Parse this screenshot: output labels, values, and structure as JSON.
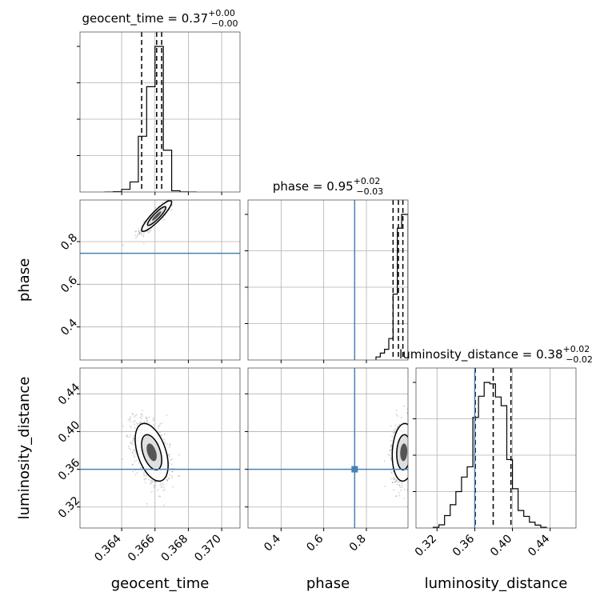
{
  "chart_data": {
    "type": "corner",
    "parameters": [
      "geocent_time",
      "phase",
      "luminosity_distance"
    ],
    "axis_labels": [
      "geocent_time",
      "phase",
      "luminosity_distance"
    ],
    "ranges": [
      [
        0.3615,
        0.3711
      ],
      [
        0.245,
        0.995
      ],
      [
        0.2977,
        0.4674
      ]
    ],
    "ticks": [
      {
        "values": [
          0.364,
          0.366,
          0.368,
          0.37
        ],
        "labels": [
          "0.364",
          "0.366",
          "0.368",
          "0.370"
        ]
      },
      {
        "values": [
          0.4,
          0.6,
          0.8
        ],
        "labels": [
          "0.4",
          "0.6",
          "0.8"
        ]
      },
      {
        "values": [
          0.32,
          0.36,
          0.4,
          0.44
        ],
        "labels": [
          "0.32",
          "0.36",
          "0.40",
          "0.44"
        ]
      }
    ],
    "titles": [
      {
        "prefix": "geocent_time = 0.37",
        "sup": "+0.00",
        "sub": "−0.00"
      },
      {
        "prefix": "phase = 0.95",
        "sup": "+0.02",
        "sub": "−0.03"
      },
      {
        "prefix": "luminosity_distance = 0.38",
        "sup": "+0.02",
        "sub": "−0.02"
      }
    ],
    "quantiles": [
      [
        0.3652,
        0.3661,
        0.3664
      ],
      [
        0.925,
        0.95,
        0.971
      ],
      [
        0.3606,
        0.3796,
        0.3984
      ]
    ],
    "truths": [
      null,
      0.745,
      0.36
    ],
    "histograms": [
      {
        "bins": [
          0.363,
          0.3635,
          0.364,
          0.3645,
          0.365,
          0.3655,
          0.366,
          0.3665,
          0.367,
          0.3675,
          0.368,
          0.3685
        ],
        "counts": [
          0.2,
          2,
          17,
          65,
          360,
          680,
          940,
          270,
          8,
          1,
          0
        ]
      },
      {
        "bins": [
          0.845,
          0.865,
          0.885,
          0.905,
          0.925,
          0.945,
          0.965,
          0.985,
          0.995
        ],
        "counts": [
          20,
          45,
          70,
          140,
          430,
          860,
          950,
          950
        ]
      },
      {
        "bins": [
          0.316,
          0.322,
          0.328,
          0.334,
          0.34,
          0.346,
          0.352,
          0.358,
          0.364,
          0.37,
          0.376,
          0.382,
          0.388,
          0.394,
          0.4,
          0.406,
          0.412,
          0.418,
          0.424,
          0.43,
          0.436
        ],
        "counts": [
          5,
          22,
          85,
          160,
          250,
          350,
          420,
          760,
          905,
          1000,
          990,
          900,
          840,
          470,
          270,
          120,
          80,
          40,
          20,
          5
        ]
      }
    ],
    "colors": {
      "truth": "#4682b4",
      "hist": "#000000",
      "grid": "#b0b0b0",
      "points": "#000000"
    },
    "grid": true
  }
}
